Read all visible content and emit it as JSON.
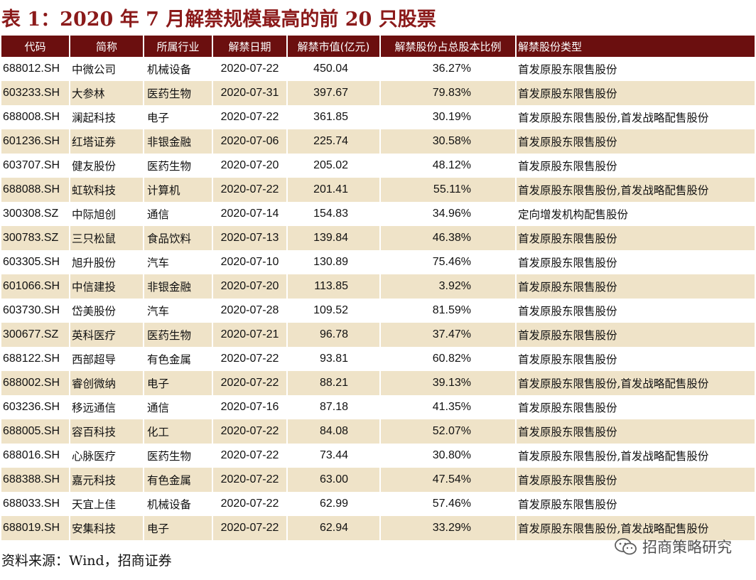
{
  "title": "表 1：2020 年 7 月解禁规模最高的前 20 只股票",
  "columns": [
    "代码",
    "简称",
    "所属行业",
    "解禁日期",
    "解禁市值(亿元)",
    "解禁股份占总股本比例",
    "解禁股份类型"
  ],
  "rows": [
    {
      "code": "688012.SH",
      "name": "中微公司",
      "industry": "机械设备",
      "date": "2020-07-22",
      "value": "450.04",
      "ratio": "36.27%",
      "type": "首发原股东限售股份"
    },
    {
      "code": "603233.SH",
      "name": "大参林",
      "industry": "医药生物",
      "date": "2020-07-31",
      "value": "397.67",
      "ratio": "79.83%",
      "type": "首发原股东限售股份"
    },
    {
      "code": "688008.SH",
      "name": "澜起科技",
      "industry": "电子",
      "date": "2020-07-22",
      "value": "361.85",
      "ratio": "30.19%",
      "type": "首发原股东限售股份,首发战略配售股份"
    },
    {
      "code": "601236.SH",
      "name": "红塔证券",
      "industry": "非银金融",
      "date": "2020-07-06",
      "value": "225.74",
      "ratio": "30.58%",
      "type": "首发原股东限售股份"
    },
    {
      "code": "603707.SH",
      "name": "健友股份",
      "industry": "医药生物",
      "date": "2020-07-20",
      "value": "205.02",
      "ratio": "48.12%",
      "type": "首发原股东限售股份"
    },
    {
      "code": "688088.SH",
      "name": "虹软科技",
      "industry": "计算机",
      "date": "2020-07-22",
      "value": "201.41",
      "ratio": "55.11%",
      "type": "首发原股东限售股份,首发战略配售股份"
    },
    {
      "code": "300308.SZ",
      "name": "中际旭创",
      "industry": "通信",
      "date": "2020-07-14",
      "value": "154.83",
      "ratio": "34.96%",
      "type": "定向增发机构配售股份"
    },
    {
      "code": "300783.SZ",
      "name": "三只松鼠",
      "industry": "食品饮料",
      "date": "2020-07-13",
      "value": "139.84",
      "ratio": "46.38%",
      "type": "首发原股东限售股份"
    },
    {
      "code": "603305.SH",
      "name": "旭升股份",
      "industry": "汽车",
      "date": "2020-07-10",
      "value": "130.89",
      "ratio": "75.46%",
      "type": "首发原股东限售股份"
    },
    {
      "code": "601066.SH",
      "name": "中信建投",
      "industry": "非银金融",
      "date": "2020-07-20",
      "value": "113.85",
      "ratio": "3.92%",
      "type": "首发原股东限售股份"
    },
    {
      "code": "603730.SH",
      "name": "岱美股份",
      "industry": "汽车",
      "date": "2020-07-28",
      "value": "109.52",
      "ratio": "81.59%",
      "type": "首发原股东限售股份"
    },
    {
      "code": "300677.SZ",
      "name": "英科医疗",
      "industry": "医药生物",
      "date": "2020-07-21",
      "value": "96.78",
      "ratio": "37.47%",
      "type": "首发原股东限售股份"
    },
    {
      "code": "688122.SH",
      "name": "西部超导",
      "industry": "有色金属",
      "date": "2020-07-22",
      "value": "93.81",
      "ratio": "60.82%",
      "type": "首发原股东限售股份"
    },
    {
      "code": "688002.SH",
      "name": "睿创微纳",
      "industry": "电子",
      "date": "2020-07-22",
      "value": "88.21",
      "ratio": "39.13%",
      "type": "首发原股东限售股份,首发战略配售股份"
    },
    {
      "code": "603236.SH",
      "name": "移远通信",
      "industry": "通信",
      "date": "2020-07-16",
      "value": "87.18",
      "ratio": "41.35%",
      "type": "首发原股东限售股份"
    },
    {
      "code": "688005.SH",
      "name": "容百科技",
      "industry": "化工",
      "date": "2020-07-22",
      "value": "84.08",
      "ratio": "52.07%",
      "type": "首发原股东限售股份"
    },
    {
      "code": "688016.SH",
      "name": "心脉医疗",
      "industry": "医药生物",
      "date": "2020-07-22",
      "value": "73.44",
      "ratio": "30.80%",
      "type": "首发原股东限售股份,首发战略配售股份"
    },
    {
      "code": "688388.SH",
      "name": "嘉元科技",
      "industry": "有色金属",
      "date": "2020-07-22",
      "value": "63.00",
      "ratio": "47.54%",
      "type": "首发原股东限售股份"
    },
    {
      "code": "688033.SH",
      "name": "天宜上佳",
      "industry": "机械设备",
      "date": "2020-07-22",
      "value": "62.99",
      "ratio": "57.46%",
      "type": "首发原股东限售股份"
    },
    {
      "code": "688019.SH",
      "name": "安集科技",
      "industry": "电子",
      "date": "2020-07-22",
      "value": "62.94",
      "ratio": "33.29%",
      "type": "首发原股东限售股份,首发战略配售股份"
    }
  ],
  "source": "资料来源：Wind，招商证券",
  "watermark": {
    "icon": "wechat-icon",
    "text": "招商策略研究"
  },
  "colors": {
    "header_bg": "#6b0f0f",
    "title": "#8b1a1a",
    "alt_row": "#efe3c8"
  }
}
